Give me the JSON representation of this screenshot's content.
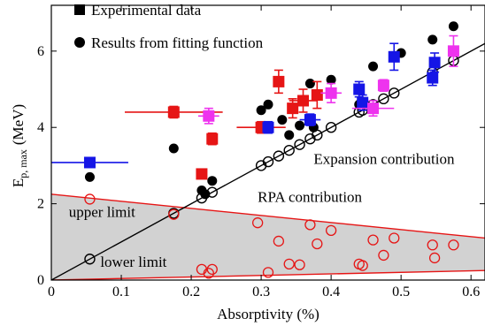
{
  "chart_data": {
    "type": "scatter",
    "xlabel": "Absorptivity (%)",
    "ylabel_main": "E",
    "ylabel_sub": "p, max",
    "ylabel_unit": "(MeV)",
    "xlim": [
      0,
      0.62
    ],
    "ylim": [
      0,
      7.2
    ],
    "xticks": [
      0,
      0.1,
      0.2,
      0.3,
      0.4,
      0.5,
      0.6
    ],
    "xtick_labels": [
      "0",
      "0.1",
      "0.2",
      "0.3",
      "0.4",
      "0.5",
      "0.6"
    ],
    "yticks": [
      0,
      2,
      4,
      6
    ],
    "ytick_labels": [
      "0",
      "2",
      "4",
      "6"
    ],
    "legend": {
      "placement": "top-left",
      "entries": [
        {
          "label": "Experimental data",
          "marker": "square"
        },
        {
          "label": "Results from fitting function",
          "marker": "circle"
        }
      ]
    },
    "annotations": [
      {
        "text": "Expansion contribution",
        "x": 0.375,
        "y": 3.05
      },
      {
        "text": "RPA contribution",
        "x": 0.295,
        "y": 2.05
      },
      {
        "text": "upper limit",
        "x": 0.025,
        "y": 1.65
      },
      {
        "text": "lower limit",
        "x": 0.07,
        "y": 0.35
      }
    ],
    "colors": {
      "blue": "#1515e6",
      "red": "#e61515",
      "magenta": "#ee33ee",
      "black": "#000000",
      "rpa_fill": "#d2d2d2",
      "rpa_line": "#e61515"
    },
    "experimental": [
      {
        "x": 0.055,
        "y": 3.08,
        "xerr": 0.055,
        "yerr": 0.12,
        "color": "blue"
      },
      {
        "x": 0.175,
        "y": 4.4,
        "xerr": 0.07,
        "yerr": 0.15,
        "color": "red"
      },
      {
        "x": 0.215,
        "y": 2.78,
        "xerr": 0.0,
        "yerr": 0.1,
        "color": "red"
      },
      {
        "x": 0.225,
        "y": 4.3,
        "xerr": 0.015,
        "yerr": 0.2,
        "color": "magenta"
      },
      {
        "x": 0.23,
        "y": 3.7,
        "xerr": 0.0,
        "yerr": 0.15,
        "color": "red"
      },
      {
        "x": 0.3,
        "y": 4.0,
        "xerr": 0.035,
        "yerr": 0.15,
        "color": "red"
      },
      {
        "x": 0.31,
        "y": 4.0,
        "xerr": 0.0,
        "yerr": 0.15,
        "color": "blue"
      },
      {
        "x": 0.325,
        "y": 5.2,
        "xerr": 0.0,
        "yerr": 0.3,
        "color": "red"
      },
      {
        "x": 0.345,
        "y": 4.5,
        "xerr": 0.0,
        "yerr": 0.25,
        "color": "red"
      },
      {
        "x": 0.36,
        "y": 4.7,
        "xerr": 0.02,
        "yerr": 0.3,
        "color": "red"
      },
      {
        "x": 0.37,
        "y": 4.2,
        "xerr": 0.015,
        "yerr": 0.15,
        "color": "blue"
      },
      {
        "x": 0.38,
        "y": 4.85,
        "xerr": 0.0,
        "yerr": 0.35,
        "color": "red"
      },
      {
        "x": 0.4,
        "y": 4.9,
        "xerr": 0.015,
        "yerr": 0.25,
        "color": "magenta"
      },
      {
        "x": 0.44,
        "y": 5.0,
        "xerr": 0.0,
        "yerr": 0.2,
        "color": "blue"
      },
      {
        "x": 0.445,
        "y": 4.65,
        "xerr": 0.0,
        "yerr": 0.2,
        "color": "blue"
      },
      {
        "x": 0.46,
        "y": 4.5,
        "xerr": 0.03,
        "yerr": 0.2,
        "color": "magenta"
      },
      {
        "x": 0.475,
        "y": 5.1,
        "xerr": 0.0,
        "yerr": 0.15,
        "color": "magenta"
      },
      {
        "x": 0.49,
        "y": 5.85,
        "xerr": 0.0,
        "yerr": 0.35,
        "color": "blue"
      },
      {
        "x": 0.545,
        "y": 5.3,
        "xerr": 0.0,
        "yerr": 0.2,
        "color": "blue"
      },
      {
        "x": 0.548,
        "y": 5.7,
        "xerr": 0.0,
        "yerr": 0.25,
        "color": "blue"
      },
      {
        "x": 0.575,
        "y": 6.0,
        "xerr": 0.0,
        "yerr": 0.4,
        "color": "magenta"
      }
    ],
    "fitting_results": [
      {
        "x": 0.055,
        "y": 2.7
      },
      {
        "x": 0.175,
        "y": 3.45
      },
      {
        "x": 0.215,
        "y": 2.35
      },
      {
        "x": 0.22,
        "y": 2.25
      },
      {
        "x": 0.23,
        "y": 2.6
      },
      {
        "x": 0.3,
        "y": 4.45
      },
      {
        "x": 0.31,
        "y": 4.6
      },
      {
        "x": 0.33,
        "y": 4.2
      },
      {
        "x": 0.34,
        "y": 3.8
      },
      {
        "x": 0.355,
        "y": 4.05
      },
      {
        "x": 0.37,
        "y": 5.15
      },
      {
        "x": 0.375,
        "y": 4.0
      },
      {
        "x": 0.4,
        "y": 5.25
      },
      {
        "x": 0.44,
        "y": 4.6
      },
      {
        "x": 0.46,
        "y": 5.6
      },
      {
        "x": 0.5,
        "y": 5.95
      },
      {
        "x": 0.545,
        "y": 6.3
      },
      {
        "x": 0.575,
        "y": 6.65
      }
    ],
    "expansion_line": {
      "x": [
        0,
        0.62
      ],
      "y": [
        0,
        6.2
      ]
    },
    "expansion_markers_x": [
      0.055,
      0.175,
      0.215,
      0.23,
      0.3,
      0.31,
      0.325,
      0.34,
      0.355,
      0.37,
      0.38,
      0.4,
      0.44,
      0.445,
      0.46,
      0.475,
      0.49,
      0.545,
      0.575
    ],
    "rpa_upper": {
      "x0": 0,
      "y0": 2.25,
      "x1": 0.62,
      "y1": 1.1
    },
    "rpa_lower": {
      "x0": 0,
      "y0": 0.0,
      "x1": 0.62,
      "y1": 0.25
    },
    "rpa_markers": [
      {
        "x": 0.055,
        "y": 2.12
      },
      {
        "x": 0.175,
        "y": 1.72
      },
      {
        "x": 0.215,
        "y": 0.28
      },
      {
        "x": 0.225,
        "y": 0.18
      },
      {
        "x": 0.23,
        "y": 0.28
      },
      {
        "x": 0.295,
        "y": 1.5
      },
      {
        "x": 0.31,
        "y": 0.2
      },
      {
        "x": 0.325,
        "y": 1.02
      },
      {
        "x": 0.34,
        "y": 0.42
      },
      {
        "x": 0.355,
        "y": 0.4
      },
      {
        "x": 0.37,
        "y": 1.45
      },
      {
        "x": 0.38,
        "y": 0.95
      },
      {
        "x": 0.4,
        "y": 1.3
      },
      {
        "x": 0.44,
        "y": 0.42
      },
      {
        "x": 0.445,
        "y": 0.38
      },
      {
        "x": 0.46,
        "y": 1.05
      },
      {
        "x": 0.475,
        "y": 0.65
      },
      {
        "x": 0.49,
        "y": 1.1
      },
      {
        "x": 0.545,
        "y": 0.92
      },
      {
        "x": 0.548,
        "y": 0.58
      },
      {
        "x": 0.575,
        "y": 0.92
      }
    ]
  }
}
